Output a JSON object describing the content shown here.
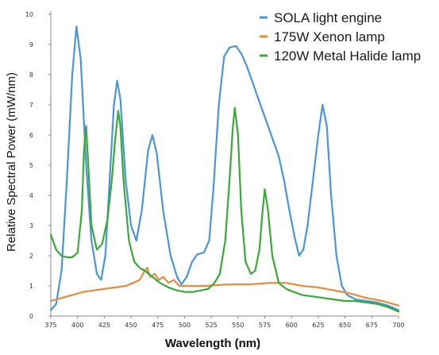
{
  "chart_data": {
    "type": "line",
    "title": "",
    "xlabel": "Wavelength (nm)",
    "ylabel": "Relative Spectral Power (mW/nm)",
    "xlim": [
      375,
      700
    ],
    "ylim": [
      0,
      10
    ],
    "x_ticks": [
      "375",
      "400",
      "425",
      "450",
      "475",
      "500",
      "525",
      "550",
      "575",
      "600",
      "625",
      "650",
      "675",
      "700"
    ],
    "y_ticks": [
      "0",
      "1",
      "2",
      "3",
      "4",
      "5",
      "6",
      "7",
      "8",
      "9",
      "10"
    ],
    "grid": false,
    "legend_position": "top-right",
    "series": [
      {
        "name": "SOLA light engine",
        "color": "#4a95d8",
        "points": [
          [
            375,
            0.2
          ],
          [
            380,
            0.4
          ],
          [
            385,
            1.5
          ],
          [
            390,
            4.5
          ],
          [
            395,
            8.0
          ],
          [
            399,
            9.6
          ],
          [
            403,
            8.5
          ],
          [
            408,
            5.0
          ],
          [
            413,
            2.5
          ],
          [
            418,
            1.4
          ],
          [
            422,
            1.2
          ],
          [
            426,
            2.0
          ],
          [
            430,
            4.5
          ],
          [
            434,
            7.0
          ],
          [
            437,
            7.8
          ],
          [
            440,
            7.2
          ],
          [
            445,
            4.5
          ],
          [
            450,
            3.0
          ],
          [
            455,
            2.5
          ],
          [
            460,
            3.5
          ],
          [
            466,
            5.5
          ],
          [
            470,
            6.0
          ],
          [
            474,
            5.4
          ],
          [
            480,
            3.5
          ],
          [
            487,
            2.0
          ],
          [
            493,
            1.3
          ],
          [
            497,
            1.05
          ],
          [
            502,
            1.3
          ],
          [
            507,
            1.8
          ],
          [
            512,
            2.05
          ],
          [
            518,
            2.1
          ],
          [
            523,
            2.5
          ],
          [
            527,
            4.2
          ],
          [
            532,
            7.0
          ],
          [
            537,
            8.6
          ],
          [
            542,
            8.9
          ],
          [
            548,
            8.95
          ],
          [
            553,
            8.7
          ],
          [
            558,
            8.3
          ],
          [
            563,
            7.8
          ],
          [
            568,
            7.3
          ],
          [
            573,
            6.8
          ],
          [
            578,
            6.3
          ],
          [
            583,
            5.8
          ],
          [
            588,
            5.3
          ],
          [
            593,
            4.5
          ],
          [
            598,
            3.5
          ],
          [
            603,
            2.6
          ],
          [
            607,
            2.0
          ],
          [
            611,
            2.2
          ],
          [
            615,
            3.0
          ],
          [
            620,
            4.5
          ],
          [
            625,
            6.0
          ],
          [
            629,
            7.0
          ],
          [
            633,
            6.3
          ],
          [
            637,
            4.0
          ],
          [
            642,
            2.0
          ],
          [
            647,
            1.0
          ],
          [
            652,
            0.7
          ],
          [
            660,
            0.55
          ],
          [
            670,
            0.5
          ],
          [
            680,
            0.45
          ],
          [
            690,
            0.35
          ],
          [
            700,
            0.2
          ]
        ]
      },
      {
        "name": "175W Xenon lamp",
        "color": "#e58c3b",
        "points": [
          [
            375,
            0.5
          ],
          [
            385,
            0.6
          ],
          [
            395,
            0.7
          ],
          [
            405,
            0.8
          ],
          [
            415,
            0.85
          ],
          [
            425,
            0.9
          ],
          [
            435,
            0.95
          ],
          [
            445,
            1.0
          ],
          [
            452,
            1.1
          ],
          [
            458,
            1.2
          ],
          [
            462,
            1.45
          ],
          [
            465,
            1.6
          ],
          [
            468,
            1.3
          ],
          [
            472,
            1.4
          ],
          [
            476,
            1.2
          ],
          [
            480,
            1.3
          ],
          [
            485,
            1.1
          ],
          [
            490,
            1.2
          ],
          [
            495,
            1.0
          ],
          [
            505,
            1.0
          ],
          [
            520,
            1.0
          ],
          [
            540,
            1.05
          ],
          [
            560,
            1.05
          ],
          [
            580,
            1.1
          ],
          [
            595,
            1.1
          ],
          [
            610,
            1.0
          ],
          [
            625,
            0.95
          ],
          [
            640,
            0.85
          ],
          [
            655,
            0.75
          ],
          [
            670,
            0.6
          ],
          [
            685,
            0.5
          ],
          [
            700,
            0.35
          ]
        ]
      },
      {
        "name": "120W Metal Halide lamp",
        "color": "#3aa83a",
        "points": [
          [
            375,
            2.7
          ],
          [
            380,
            2.2
          ],
          [
            385,
            2.0
          ],
          [
            390,
            1.95
          ],
          [
            395,
            1.95
          ],
          [
            400,
            2.1
          ],
          [
            404,
            3.5
          ],
          [
            406,
            5.5
          ],
          [
            408,
            6.3
          ],
          [
            410,
            5.0
          ],
          [
            413,
            3.0
          ],
          [
            418,
            2.2
          ],
          [
            423,
            2.4
          ],
          [
            428,
            3.2
          ],
          [
            432,
            4.5
          ],
          [
            435,
            5.8
          ],
          [
            438,
            6.8
          ],
          [
            440,
            6.3
          ],
          [
            443,
            4.5
          ],
          [
            448,
            2.5
          ],
          [
            453,
            1.8
          ],
          [
            458,
            1.6
          ],
          [
            463,
            1.5
          ],
          [
            470,
            1.3
          ],
          [
            477,
            1.1
          ],
          [
            485,
            0.95
          ],
          [
            493,
            0.85
          ],
          [
            500,
            0.8
          ],
          [
            508,
            0.8
          ],
          [
            515,
            0.85
          ],
          [
            522,
            0.9
          ],
          [
            528,
            1.1
          ],
          [
            533,
            1.4
          ],
          [
            538,
            2.5
          ],
          [
            542,
            4.5
          ],
          [
            545,
            6.2
          ],
          [
            547,
            6.9
          ],
          [
            550,
            6.0
          ],
          [
            553,
            3.5
          ],
          [
            557,
            1.8
          ],
          [
            562,
            1.4
          ],
          [
            566,
            1.5
          ],
          [
            570,
            2.2
          ],
          [
            573,
            3.5
          ],
          [
            575,
            4.2
          ],
          [
            578,
            3.5
          ],
          [
            582,
            2.0
          ],
          [
            588,
            1.1
          ],
          [
            595,
            0.9
          ],
          [
            602,
            0.8
          ],
          [
            610,
            0.7
          ],
          [
            620,
            0.65
          ],
          [
            630,
            0.6
          ],
          [
            640,
            0.55
          ],
          [
            650,
            0.5
          ],
          [
            660,
            0.5
          ],
          [
            670,
            0.45
          ],
          [
            680,
            0.4
          ],
          [
            690,
            0.3
          ],
          [
            700,
            0.15
          ]
        ]
      }
    ]
  }
}
